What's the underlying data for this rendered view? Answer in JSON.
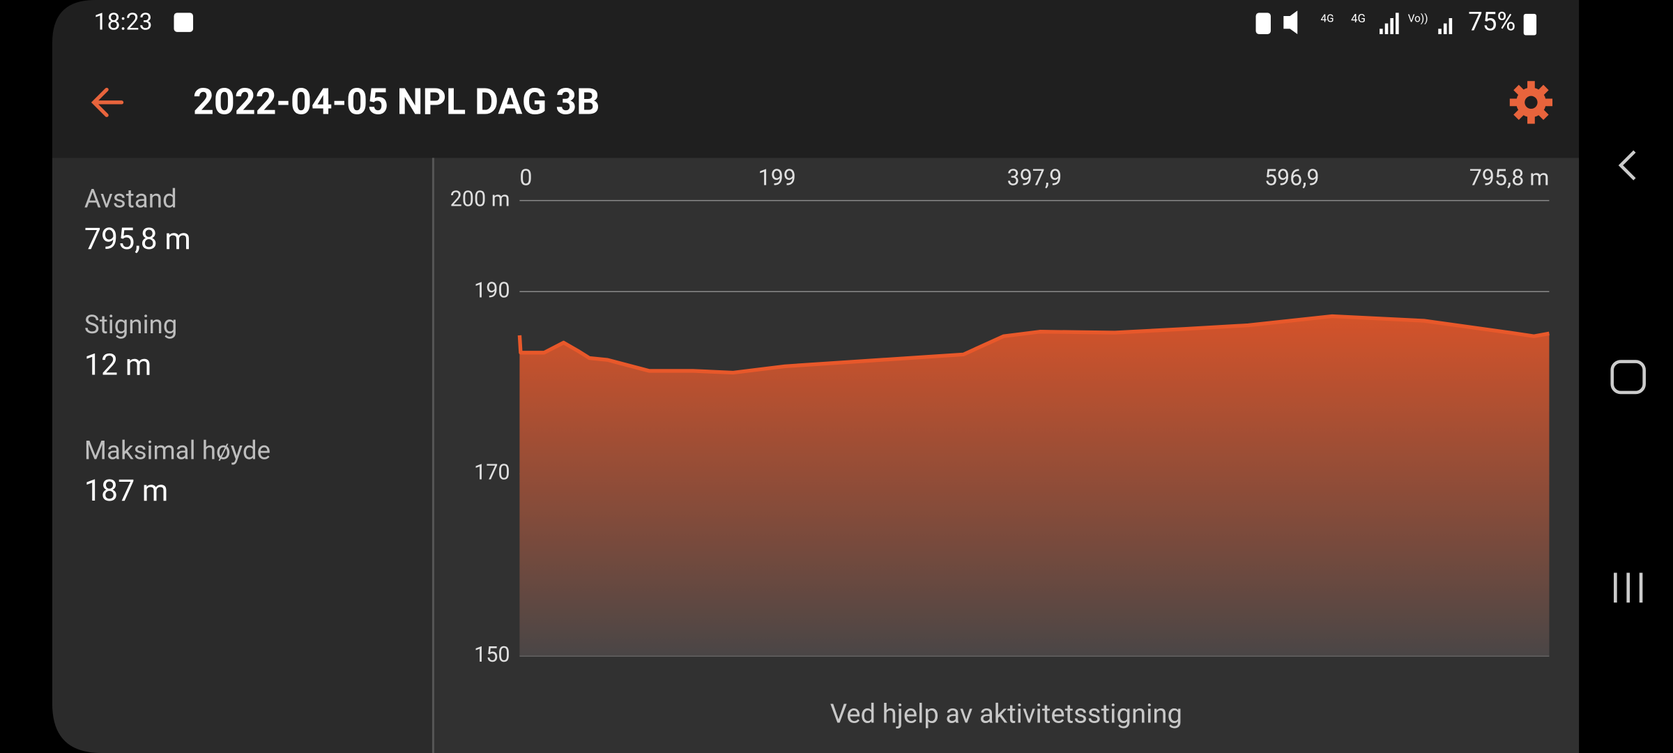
{
  "status_bar": {
    "time": "18:23",
    "battery": "75%"
  },
  "header": {
    "title": "2022-04-05 NPL DAG 3B"
  },
  "stats": [
    {
      "label": "Avstand",
      "value": "795,8 m"
    },
    {
      "label": "Stigning",
      "value": "12 m"
    },
    {
      "label": "Maksimal høyde",
      "value": "187 m"
    }
  ],
  "chart_data": {
    "type": "area",
    "color": "#e8582a",
    "x": [
      0,
      0.8,
      19,
      34,
      45,
      54,
      68,
      100,
      134,
      165,
      205,
      258,
      343,
      374,
      402,
      460,
      514,
      563,
      628,
      699,
      765,
      784,
      795.8
    ],
    "values": [
      185.2,
      183.3,
      183.3,
      184.4,
      183.5,
      182.7,
      182.5,
      181.3,
      181.3,
      181.1,
      181.8,
      182.3,
      183.1,
      185.1,
      185.6,
      185.5,
      185.9,
      186.3,
      187.3,
      186.8,
      185.5,
      185.1,
      185.4
    ],
    "xlim": [
      0,
      795.8
    ],
    "xticks": [
      0,
      {
        "value": 199,
        "label": "199"
      },
      {
        "value": 397.9,
        "label": "397,9"
      },
      {
        "value": 596.9,
        "label": "596,9"
      },
      {
        "value": 795.8,
        "label": "795,8 m"
      }
    ],
    "ylim": [
      150,
      200
    ],
    "yticks": [
      150,
      170,
      190,
      {
        "value": 200,
        "label": "200 m"
      }
    ],
    "grid": true,
    "caption": "Ved hjelp av aktivitetsstigning"
  }
}
